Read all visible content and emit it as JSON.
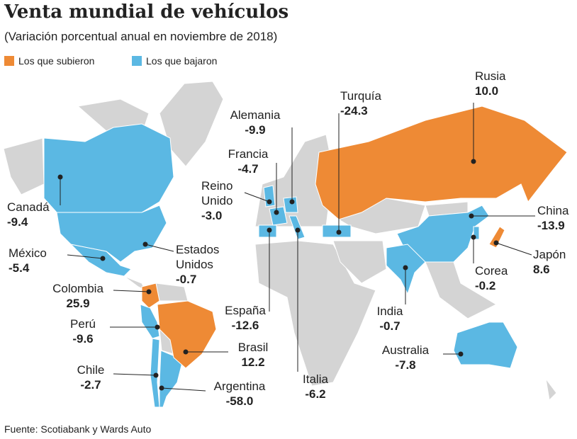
{
  "header": {
    "title": "Venta mundial de vehículos",
    "subtitle": "(Variación porcentual anual en noviembre de 2018)"
  },
  "legend": [
    {
      "label": "Los que subieron",
      "color": "#ee8a35"
    },
    {
      "label": "Los que bajaron",
      "color": "#5bb8e3"
    }
  ],
  "countries": [
    {
      "name": "Canadá",
      "value": "-9.4",
      "color": "#5bb8e3"
    },
    {
      "name": "México",
      "value": "-5.4",
      "color": "#5bb8e3"
    },
    {
      "name": "Colombia",
      "value": "25.9",
      "color": "#ee8a35"
    },
    {
      "name": "Perú",
      "value": "-9.6",
      "color": "#5bb8e3"
    },
    {
      "name": "Chile",
      "value": "-2.7",
      "color": "#5bb8e3"
    },
    {
      "name": "Argentina",
      "value": "-58.0",
      "color": "#5bb8e3"
    },
    {
      "name": "Brasil",
      "value": "12.2",
      "color": "#ee8a35"
    },
    {
      "name": "Estados Unidos",
      "value": "-0.7",
      "color": "#5bb8e3"
    },
    {
      "name": "España",
      "value": "-12.6",
      "color": "#5bb8e3"
    },
    {
      "name": "Italia",
      "value": "-6.2",
      "color": "#5bb8e3"
    },
    {
      "name": "Reino Unido",
      "value": "-3.0",
      "color": "#5bb8e3"
    },
    {
      "name": "Francia",
      "value": "-4.7",
      "color": "#5bb8e3"
    },
    {
      "name": "Alemania",
      "value": "-9.9",
      "color": "#5bb8e3"
    },
    {
      "name": "Turquía",
      "value": "-24.3",
      "color": "#5bb8e3"
    },
    {
      "name": "Rusia",
      "value": "10.0",
      "color": "#ee8a35"
    },
    {
      "name": "China",
      "value": "-13.9",
      "color": "#5bb8e3"
    },
    {
      "name": "Japón",
      "value": "8.6",
      "color": "#ee8a35"
    },
    {
      "name": "Corea",
      "value": "-0.2",
      "color": "#5bb8e3"
    },
    {
      "name": "India",
      "value": "-0.7",
      "color": "#5bb8e3"
    },
    {
      "name": "Australia",
      "value": "-7.8",
      "color": "#5bb8e3"
    }
  ],
  "footer": {
    "source": "Fuente: Scotiabank y Wards Auto"
  }
}
